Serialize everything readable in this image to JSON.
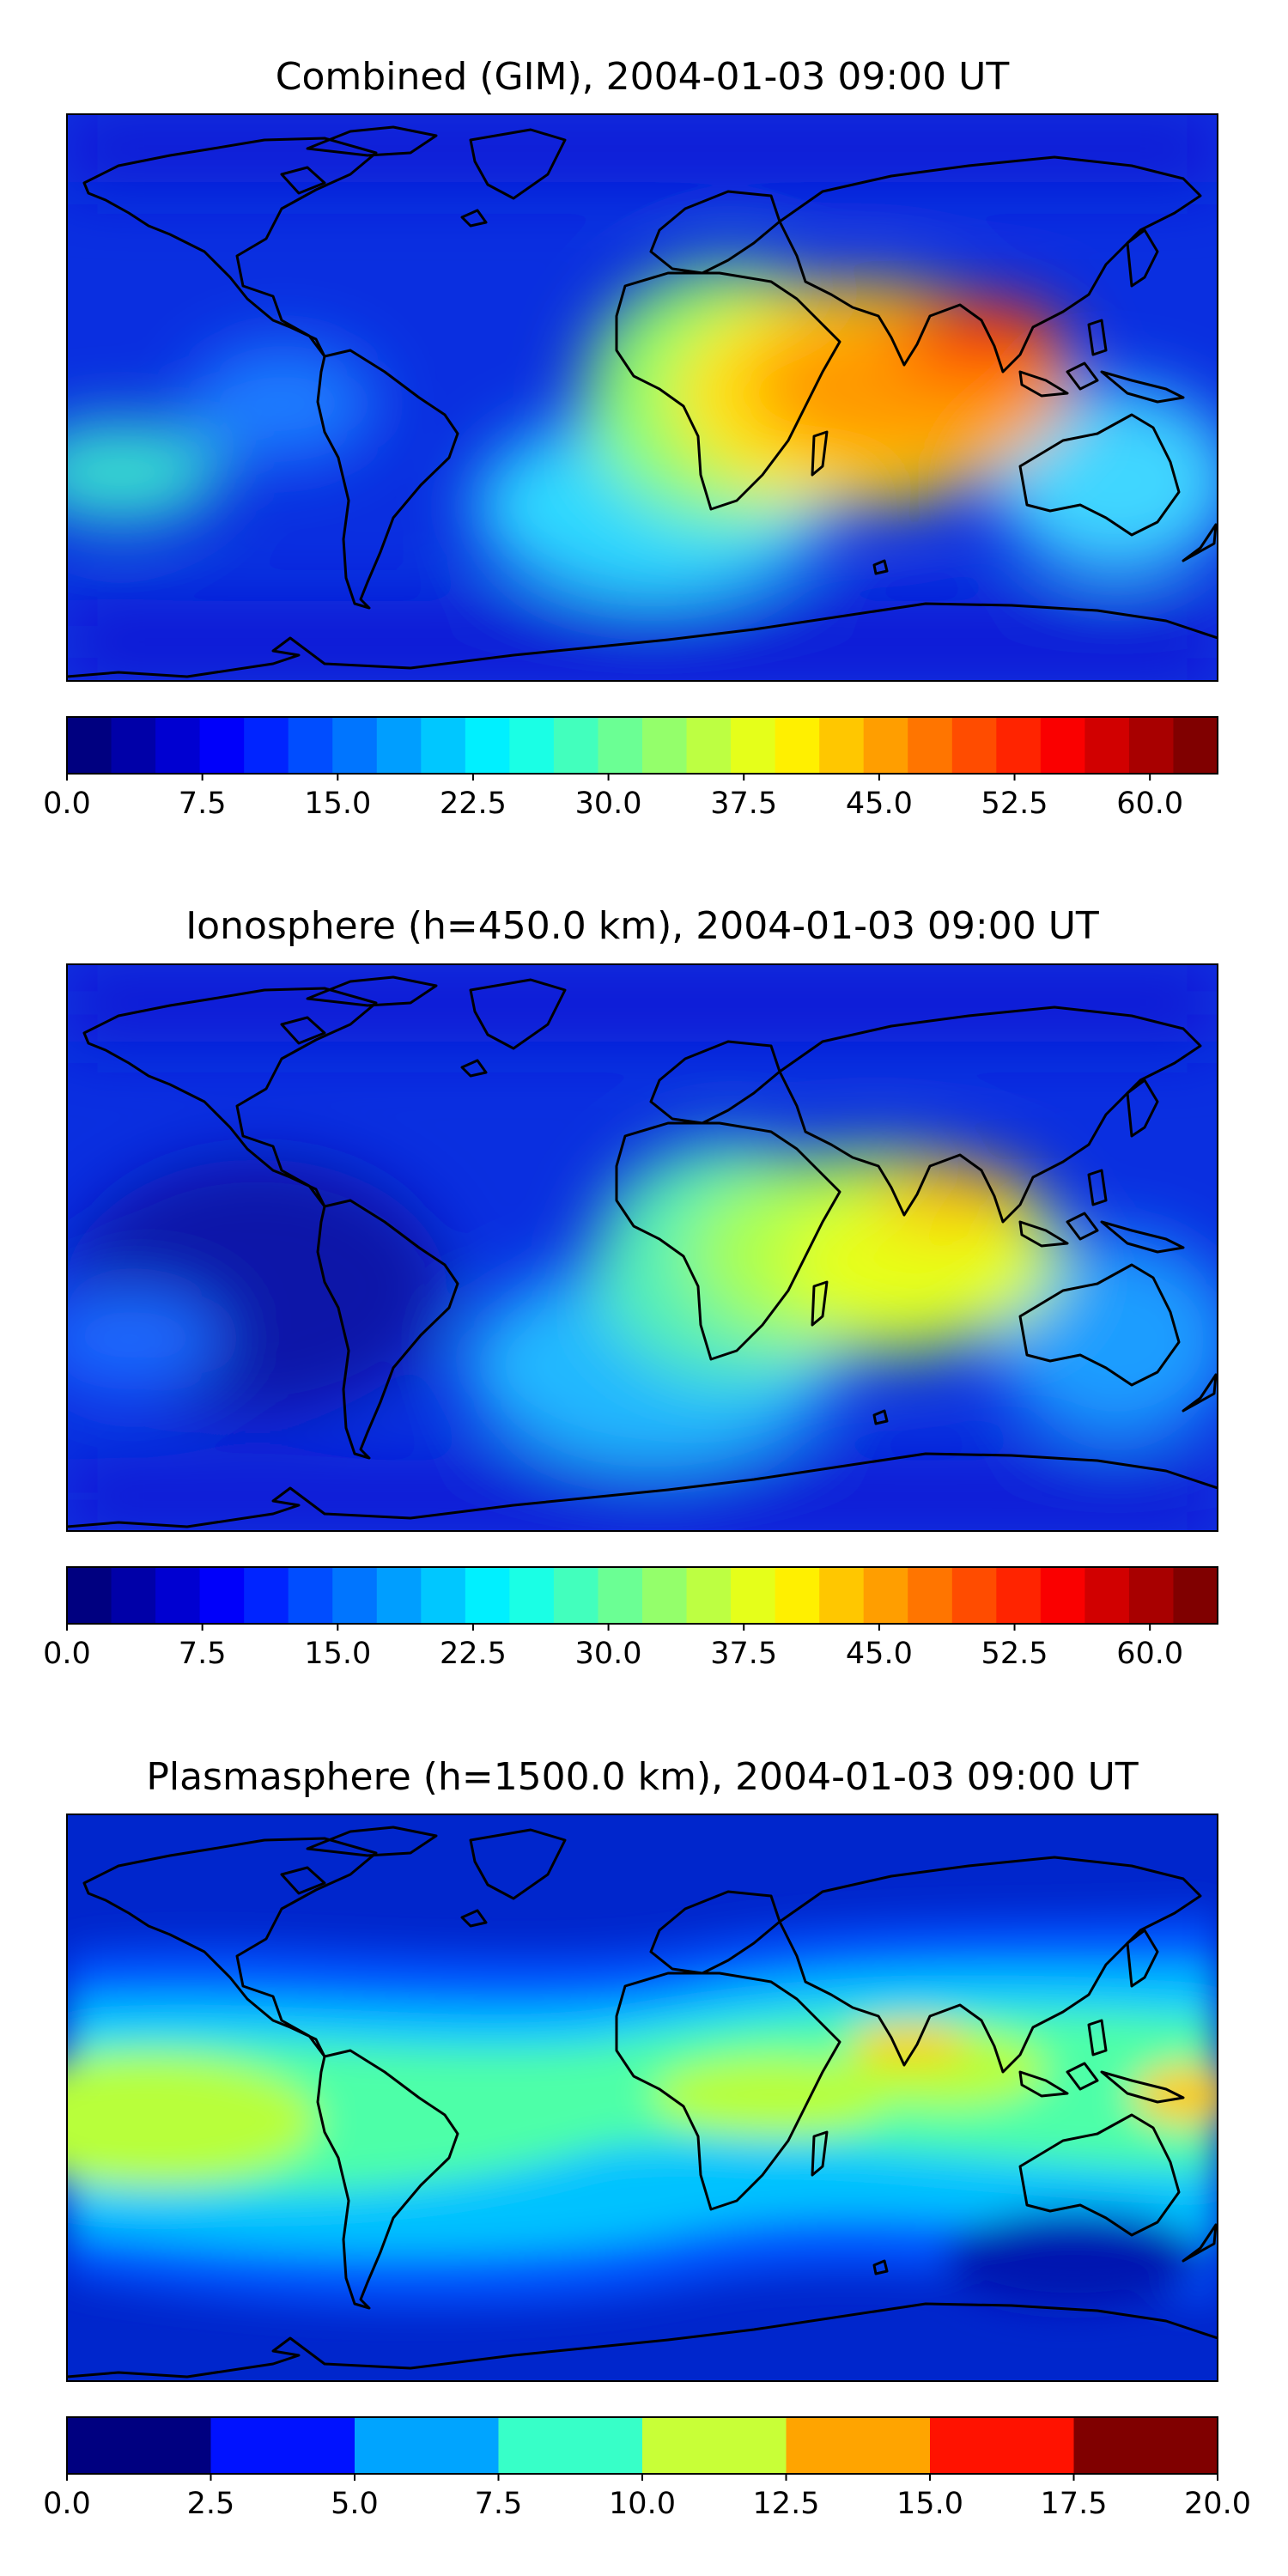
{
  "panels": [
    {
      "title": "Combined (GIM), 2004-01-03 09:00 UT",
      "colorbar": {
        "colormap": "jet",
        "vmin": 0,
        "vmax": 63.75,
        "levels": 26,
        "tick_labels": [
          "0.0",
          "7.5",
          "15.0",
          "22.5",
          "30.0",
          "37.5",
          "45.0",
          "52.5",
          "60.0"
        ],
        "tick_values": [
          0,
          7.5,
          15,
          22.5,
          30,
          37.5,
          45,
          52.5,
          60
        ]
      }
    },
    {
      "title": "Ionosphere  (h=450.0 km), 2004-01-03 09:00 UT",
      "colorbar": {
        "colormap": "jet",
        "vmin": 0,
        "vmax": 63.75,
        "levels": 26,
        "tick_labels": [
          "0.0",
          "7.5",
          "15.0",
          "22.5",
          "30.0",
          "37.5",
          "45.0",
          "52.5",
          "60.0"
        ],
        "tick_values": [
          0,
          7.5,
          15,
          22.5,
          30,
          37.5,
          45,
          52.5,
          60
        ]
      }
    },
    {
      "title": "Plasmasphere (h=1500.0 km), 2004-01-03 09:00 UT",
      "colorbar": {
        "colormap": "jet",
        "vmin": 0,
        "vmax": 20,
        "levels": 8,
        "tick_labels": [
          "0.0",
          "2.5",
          "5.0",
          "7.5",
          "10.0",
          "12.5",
          "15.0",
          "17.5",
          "20.0"
        ],
        "tick_values": [
          0,
          2.5,
          5,
          7.5,
          10,
          12.5,
          15,
          17.5,
          20
        ]
      }
    }
  ],
  "colors": {
    "jet_dark_blue": "#00007f",
    "jet_blue": "#0000ff",
    "jet_cyan": "#00ffff",
    "jet_yellow": "#ffff00",
    "jet_red": "#ff0000",
    "jet_dark_red": "#7f0000",
    "coastline": "#000000"
  }
}
